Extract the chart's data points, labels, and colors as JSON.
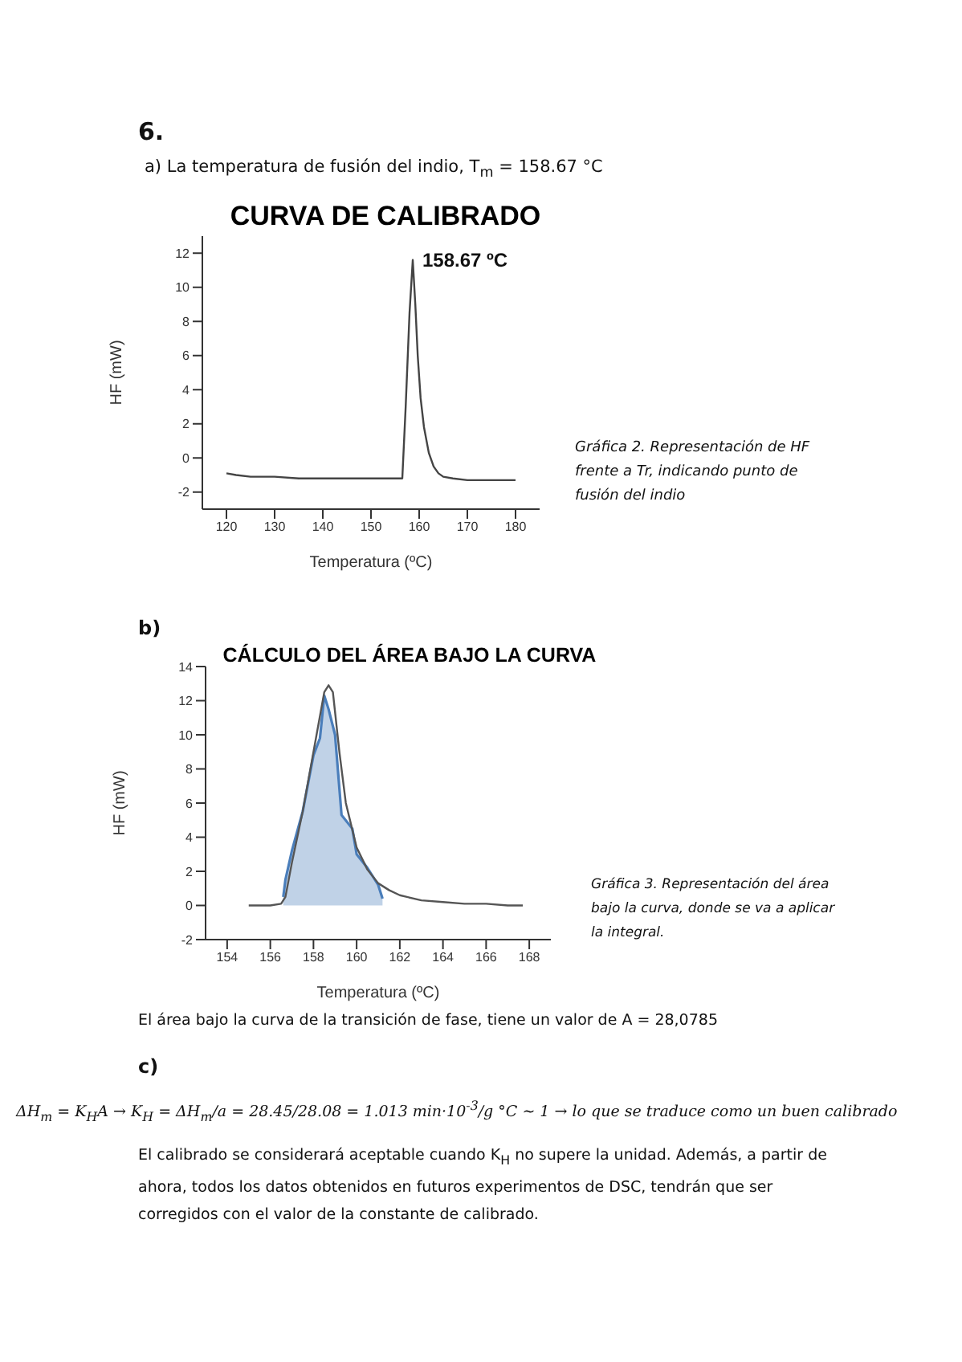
{
  "chart_data": [
    {
      "type": "line",
      "title": "CURVA DE CALIBRADO",
      "xlabel": "Temperatura (ºC)",
      "ylabel": "HF (mW)",
      "xlim": [
        115,
        185
      ],
      "xticks": [
        120,
        130,
        140,
        150,
        160,
        170,
        180
      ],
      "ylim": [
        -3,
        13
      ],
      "yticks": [
        -2,
        0,
        2,
        4,
        6,
        8,
        10,
        12
      ],
      "series": [
        {
          "type": "line",
          "color": "#444444",
          "x": [
            120,
            122,
            125,
            130,
            135,
            140,
            145,
            150,
            155,
            156.5,
            157.2,
            158,
            158.67,
            159.2,
            159.7,
            160.3,
            161,
            162,
            163,
            164,
            165,
            167,
            170,
            175,
            180
          ],
          "values": [
            -0.9,
            -1.0,
            -1.1,
            -1.1,
            -1.2,
            -1.2,
            -1.2,
            -1.2,
            -1.2,
            -1.2,
            3,
            8.5,
            11.6,
            9,
            6,
            3.5,
            1.8,
            0.3,
            -0.5,
            -0.9,
            -1.1,
            -1.2,
            -1.3,
            -1.3,
            -1.3
          ]
        }
      ],
      "annotations": [
        "6.",
        "a) La temperatura de fusión del indio, T$_{m}$ = 158.67 °C",
        {
          "text": "158.67 ºC",
          "x": 158.67,
          "y": 11.6
        },
        "Gráfica 2. Representación de HF frente a Tr, indicando punto de fusión del indio"
      ]
    },
    {
      "type": "line",
      "title": "CÁLCULO DEL ÁREA BAJO LA CURVA",
      "xlabel": "Temperatura (ºC)",
      "ylabel": "HF (mW)",
      "xlim": [
        153,
        169
      ],
      "xticks": [
        154,
        156,
        158,
        160,
        162,
        164,
        166,
        168
      ],
      "ylim": [
        -2,
        14
      ],
      "yticks": [
        -2,
        0,
        2,
        4,
        6,
        8,
        10,
        12,
        14
      ],
      "series": [
        {
          "type": "line",
          "color": "#555555",
          "x": [
            155,
            156,
            156.5,
            156.7,
            157,
            157.5,
            158,
            158.5,
            158.7,
            158.9,
            159.2,
            159.5,
            160,
            160.5,
            161,
            161.5,
            162,
            163,
            164,
            165,
            166,
            167,
            167.7
          ],
          "values": [
            0,
            0,
            0.1,
            0.5,
            2.5,
            5.5,
            9,
            12.5,
            12.9,
            12.5,
            9,
            6,
            3.4,
            2.1,
            1.3,
            0.9,
            0.6,
            0.3,
            0.2,
            0.1,
            0.1,
            0,
            0
          ]
        },
        {
          "type": "area",
          "color": "#4a7ebb",
          "x": [
            156.6,
            156.7,
            157,
            157.5,
            158,
            158.3,
            158.5,
            158.7,
            159,
            159.3,
            159.8,
            160,
            160.5,
            161,
            161.2
          ],
          "values": [
            0.5,
            1.5,
            3.2,
            5.5,
            8.8,
            9.8,
            12.3,
            11.5,
            10,
            5.3,
            4.5,
            3,
            2.2,
            1.2,
            0.4
          ]
        }
      ],
      "annotations": [
        "b)",
        "Gráfica 3. Representación del área bajo la curva, donde se va a aplicar la integral.",
        "El área bajo la curva de la transición de fase, tiene un valor de A = 28,0785",
        "c)",
        "ΔH$_{m}$ = K$_{H}$A → K$_{H}$ = ΔH$_{m}$/a = 28.45/28.08 = 1.013 min·10$^{-3}$/g °C ~ 1 → lo que se traduce como un buen calibrado",
        "El calibrado se considerará aceptable cuando K$_{H}$ no supere la unidad. Además, a partir de ahora, todos los datos obtenidos en futuros experimentos de DSC, tendrán que ser corregidos con el valor de la constante de calibrado."
      ]
    }
  ]
}
